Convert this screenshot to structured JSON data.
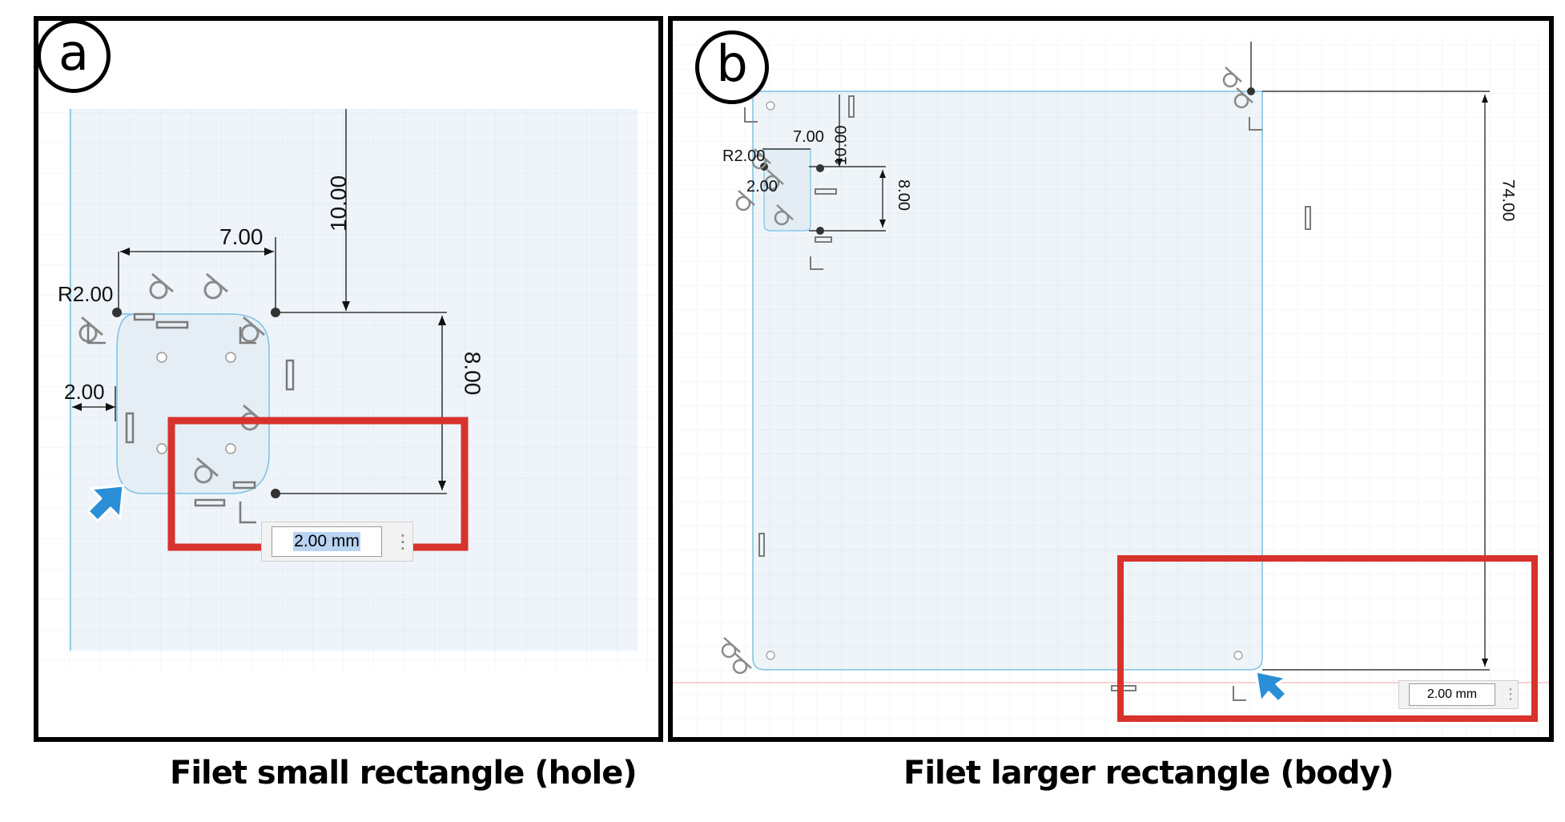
{
  "panel_a": {
    "letter": "a",
    "caption": "Filet small rectangle (hole)",
    "dims": {
      "top_offset": "10.00",
      "width": "7.00",
      "radius": "R2.00",
      "left_offset": "2.00",
      "height": "8.00"
    },
    "fillet_input": {
      "value": "2.00 mm"
    }
  },
  "panel_b": {
    "letter": "b",
    "caption": "Filet larger rectangle (body)",
    "dims": {
      "top_offset": "10.00",
      "width": "7.00",
      "radius": "R2.00",
      "left_offset": "2.00",
      "height": "8.00",
      "body_height": "74.00"
    },
    "fillet_input": {
      "value": "2.00 mm"
    }
  },
  "colors": {
    "highlight": "#d8322c",
    "sketch_line": "#7cc1e4",
    "sketch_fill": "#e9f2f8",
    "cursor": "#2a8fd6"
  },
  "icons": [
    "fillet-constraint-icon",
    "horizontal-constraint-icon",
    "vertical-constraint-icon",
    "coincident-constraint-icon",
    "cursor-arrow-icon",
    "more-options-icon"
  ]
}
